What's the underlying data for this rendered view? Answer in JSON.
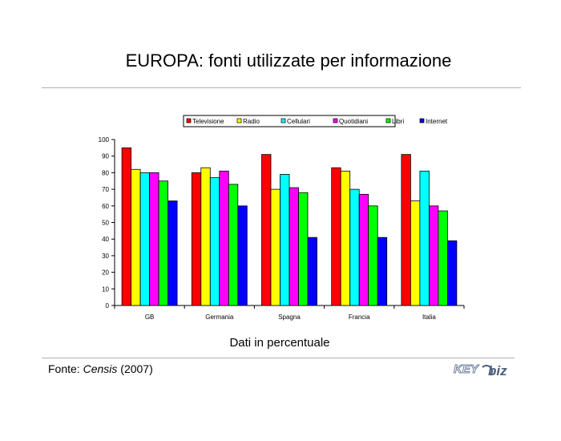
{
  "slide": {
    "title": "EUROPA: fonti utilizzate per informazione",
    "caption": "Dati in percentuale",
    "source_prefix": "Fonte: ",
    "source_name": "Censis",
    "source_year": " (2007)",
    "logo_text_key": "KEY",
    "logo_text_biz": "biz"
  },
  "chart_data": {
    "type": "bar",
    "categories": [
      "GB",
      "Germania",
      "Spagna",
      "Francia",
      "Italia"
    ],
    "series": [
      {
        "name": "Televisione",
        "color": "#ff0000",
        "values": [
          95,
          80,
          91,
          83,
          91
        ]
      },
      {
        "name": "Radio",
        "color": "#ffff00",
        "values": [
          82,
          83,
          70,
          81,
          63
        ]
      },
      {
        "name": "Cellulari",
        "color": "#00ffff",
        "values": [
          80,
          77,
          79,
          70,
          81
        ]
      },
      {
        "name": "Quotidiani",
        "color": "#ff00ff",
        "values": [
          80,
          81,
          71,
          67,
          60
        ]
      },
      {
        "name": "Libri",
        "color": "#00ff00",
        "values": [
          75,
          73,
          68,
          60,
          57
        ]
      },
      {
        "name": "Internet",
        "color": "#0000ff",
        "values": [
          63,
          60,
          41,
          41,
          39
        ]
      }
    ],
    "ylim": [
      0,
      100
    ],
    "yticks": [
      0,
      10,
      20,
      30,
      40,
      50,
      60,
      70,
      80,
      90,
      100
    ],
    "grid": false,
    "legend_position": "top"
  }
}
